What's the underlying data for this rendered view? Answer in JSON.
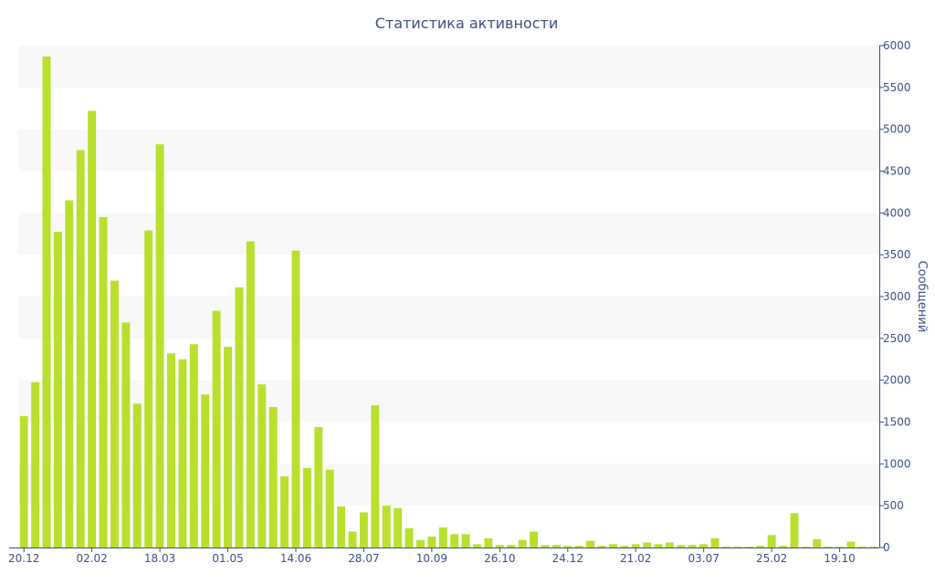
{
  "chart_data": {
    "type": "bar",
    "title": "Статистика активности",
    "xlabel": "",
    "ylabel": "Сообщений",
    "y_axis_position": "right",
    "ylim": [
      0,
      6000
    ],
    "y_ticks": [
      0,
      500,
      1000,
      1500,
      2000,
      2500,
      3000,
      3500,
      4000,
      4500,
      5000,
      5500,
      6000
    ],
    "banded_background": true,
    "band_colors": [
      "#ffffff",
      "#f8f8f8"
    ],
    "bar_color": "#b8e02d",
    "x_tick_labels": [
      "20.12",
      "02.02",
      "18.03",
      "01.05",
      "14.06",
      "28.07",
      "10.09",
      "26.10",
      "24.12",
      "21.02",
      "03.07",
      "25.02",
      "19.10"
    ],
    "x_tick_bar_index": [
      0,
      6,
      12,
      18,
      24,
      30,
      36,
      42,
      48,
      54,
      60,
      66,
      72
    ],
    "values": [
      1570,
      1975,
      5870,
      3775,
      4150,
      4750,
      5220,
      3950,
      3190,
      2690,
      1720,
      3790,
      4820,
      2320,
      2250,
      2430,
      1830,
      2830,
      2400,
      3110,
      3660,
      1950,
      1680,
      850,
      3550,
      950,
      1440,
      930,
      490,
      190,
      420,
      1700,
      500,
      470,
      230,
      90,
      130,
      240,
      160,
      160,
      40,
      110,
      30,
      30,
      90,
      190,
      30,
      30,
      20,
      20,
      80,
      20,
      40,
      20,
      40,
      60,
      40,
      60,
      30,
      30,
      40,
      110,
      10,
      10,
      10,
      20,
      150,
      20,
      410,
      10,
      100,
      10,
      10,
      70,
      10,
      10
    ]
  },
  "colors": {
    "text": "#3f4f85",
    "bar": "#b8e02d",
    "band": "#f8f8f8"
  }
}
